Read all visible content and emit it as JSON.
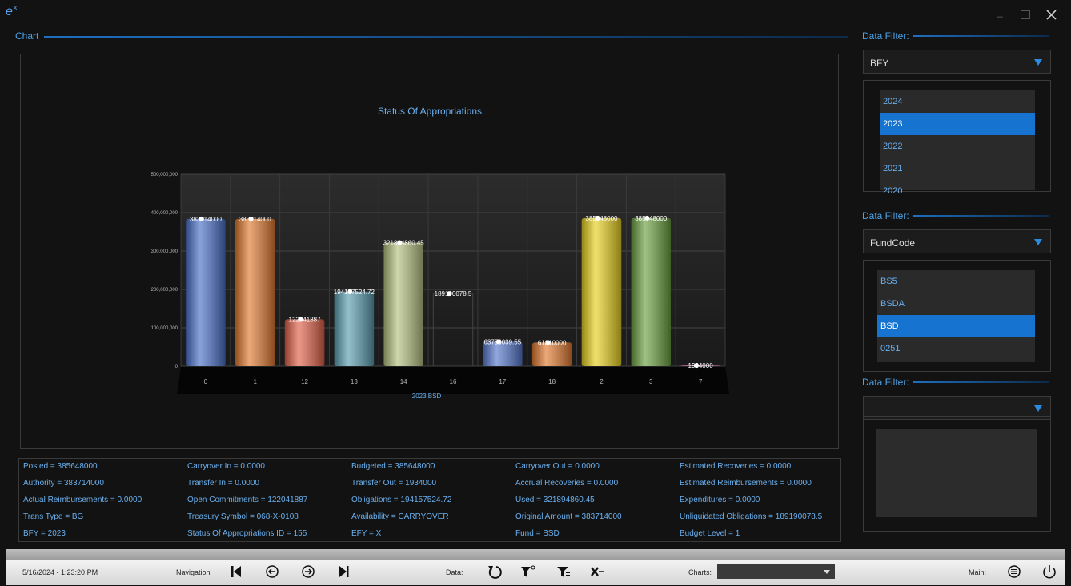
{
  "app": {
    "header": "Chart"
  },
  "chart_data": {
    "type": "bar",
    "title": "Status Of Appropriations",
    "x_label": "2023 BSD",
    "categories": [
      "0",
      "1",
      "12",
      "13",
      "14",
      "16",
      "17",
      "18",
      "2",
      "3",
      "7"
    ],
    "values": [
      383714000,
      383714000,
      122041887,
      194157524.72,
      321894860.45,
      189190078.5,
      63750039.55,
      61810000,
      385648000,
      385648000,
      1934000
    ],
    "colors": [
      "#4a70c8",
      "#e07a30",
      "#e0614a",
      "#5a9db0",
      "#b4c080",
      "#2a2a2a",
      "#5577cc",
      "#e07a30",
      "#e8d020",
      "#6aa040",
      "#d070b0"
    ],
    "ylim": [
      0,
      500000000
    ],
    "yticks": [
      0,
      {
        "value": 100000000,
        "label": "100,000,000"
      },
      {
        "value": 200000000,
        "label": "200,000,000"
      },
      {
        "value": 300000000,
        "label": "300,000,000"
      },
      {
        "value": 400000000,
        "label": "400,000,000"
      },
      {
        "value": 500000000,
        "label": "500,000,000"
      }
    ],
    "grid": true
  },
  "filters": [
    {
      "label": "Data Filter:",
      "selected": "BFY",
      "items": [
        "2024",
        "2023",
        "2022",
        "2021",
        "2020"
      ],
      "active": 1
    },
    {
      "label": "Data Filter:",
      "selected": "FundCode",
      "items": [
        "BS5",
        "BSDA",
        "BSD",
        "0251"
      ],
      "active": 2
    },
    {
      "label": "Data Filter:"
    }
  ],
  "details": [
    [
      "Posted = 385648000",
      "Carryover In = 0.0000",
      "Budgeted = 385648000",
      "Carryover Out = 0.0000",
      "Estimated Recoveries = 0.0000"
    ],
    [
      "Authority = 383714000",
      "Transfer In = 0.0000",
      "Transfer Out = 1934000",
      "Accrual Recoveries = 0.0000",
      "Estimated Reimbursements = 0.0000"
    ],
    [
      "Actual Reimbursements = 0.0000",
      "Open Commitments = 122041887",
      "Obligations = 194157524.72",
      "Used = 321894860.45",
      "Expenditures = 0.0000"
    ],
    [
      "Trans Type = BG",
      "Treasury Symbol = 068-X-0108",
      "Availability = CARRYOVER",
      "Original Amount = 383714000",
      "Unliquidated Obligations = 189190078.5"
    ],
    [
      "BFY = 2023",
      "Status Of Appropriations ID = 155",
      "EFY = X",
      "Fund  = BSD",
      "Budget Level = 1"
    ]
  ],
  "toolbar": {
    "timestamp": "5/16/2024 - 1:23:20 PM",
    "navigation": "Navigation",
    "data": "Data:",
    "charts": "Charts:",
    "main": "Main:"
  }
}
